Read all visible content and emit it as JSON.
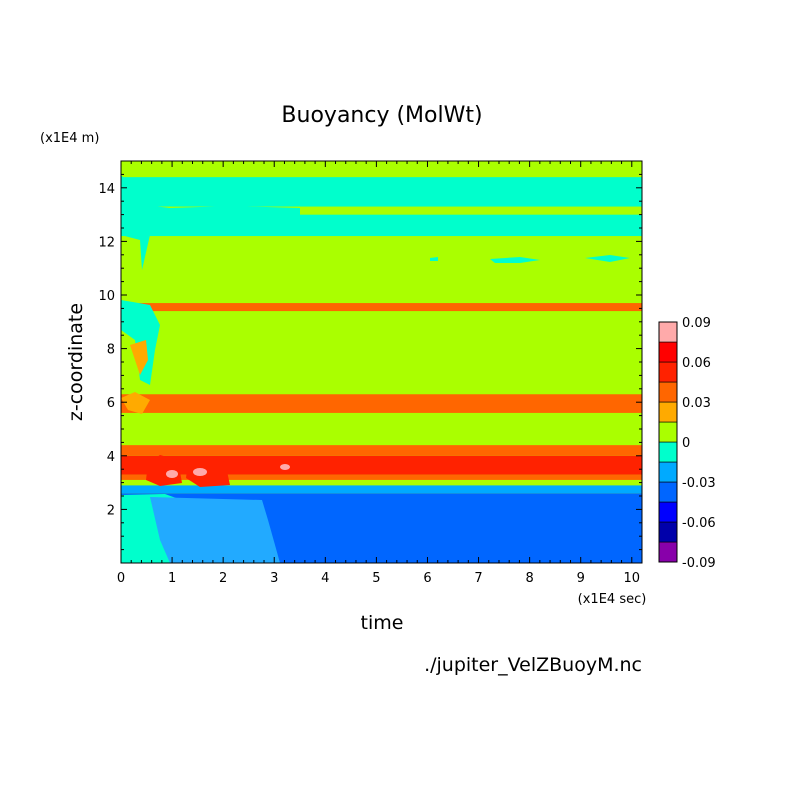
{
  "chart_data": {
    "type": "heatmap",
    "title": "Buoyancy (MolWt)",
    "xlabel": "time",
    "ylabel": "z-coordinate",
    "x_unit": "(x1E4 sec)",
    "y_unit": "(x1E4 m)",
    "source_label": "./jupiter_VelZBuoyM.nc",
    "xlim": [
      0,
      10.2
    ],
    "ylim": [
      0,
      15
    ],
    "x_ticks": [
      "0",
      "1",
      "2",
      "3",
      "4",
      "5",
      "6",
      "7",
      "8",
      "9",
      "10"
    ],
    "y_ticks": [
      "2",
      "4",
      "6",
      "8",
      "10",
      "12",
      "14"
    ],
    "colorbar": {
      "tick_labels": [
        "0.09",
        "0.06",
        "0.03",
        "0",
        "-0.03",
        "-0.06",
        "-0.09"
      ],
      "levels": [
        -0.09,
        -0.075,
        -0.06,
        -0.045,
        -0.03,
        -0.015,
        0,
        0.015,
        0.03,
        0.045,
        0.06,
        0.075,
        0.09
      ],
      "colors": [
        "#8800aa",
        "#0000aa",
        "#0000ff",
        "#0066ff",
        "#00aaff",
        "#00ffcc",
        "#aaff00",
        "#ffaa00",
        "#ff6600",
        "#ff2200",
        "#ff0000",
        "#ffaaaa"
      ]
    },
    "colors": {
      "negative_low": "#1a66ff",
      "negative_mid": "#22aaff",
      "near_zero_negative": "#00ffcc",
      "near_zero_positive": "#aaff00",
      "positive_mid": "#ffaa00",
      "positive_high": "#ff2200",
      "positive_max": "#ffaaaa"
    },
    "steady_state_profile_z_x1E4m": [
      {
        "z_from": 0.0,
        "z_to": 2.6,
        "value": -0.04
      },
      {
        "z_from": 2.6,
        "z_to": 2.9,
        "value": -0.02
      },
      {
        "z_from": 2.9,
        "z_to": 3.1,
        "value": 0.0
      },
      {
        "z_from": 3.1,
        "z_to": 3.3,
        "value": 0.035
      },
      {
        "z_from": 3.3,
        "z_to": 4.0,
        "value": 0.05
      },
      {
        "z_from": 4.0,
        "z_to": 4.4,
        "value": 0.035
      },
      {
        "z_from": 4.4,
        "z_to": 5.6,
        "value": 0.01
      },
      {
        "z_from": 5.6,
        "z_to": 6.3,
        "value": 0.035
      },
      {
        "z_from": 6.3,
        "z_to": 9.4,
        "value": 0.01
      },
      {
        "z_from": 9.4,
        "z_to": 9.7,
        "value": 0.035
      },
      {
        "z_from": 9.7,
        "z_to": 12.2,
        "value": 0.01
      },
      {
        "z_from": 12.2,
        "z_to": 13.0,
        "value": -0.01
      },
      {
        "z_from": 13.0,
        "z_to": 13.3,
        "value": 0.01
      },
      {
        "z_from": 13.3,
        "z_to": 14.4,
        "value": -0.01
      },
      {
        "z_from": 14.4,
        "z_to": 15.0,
        "value": 0.01
      }
    ]
  }
}
